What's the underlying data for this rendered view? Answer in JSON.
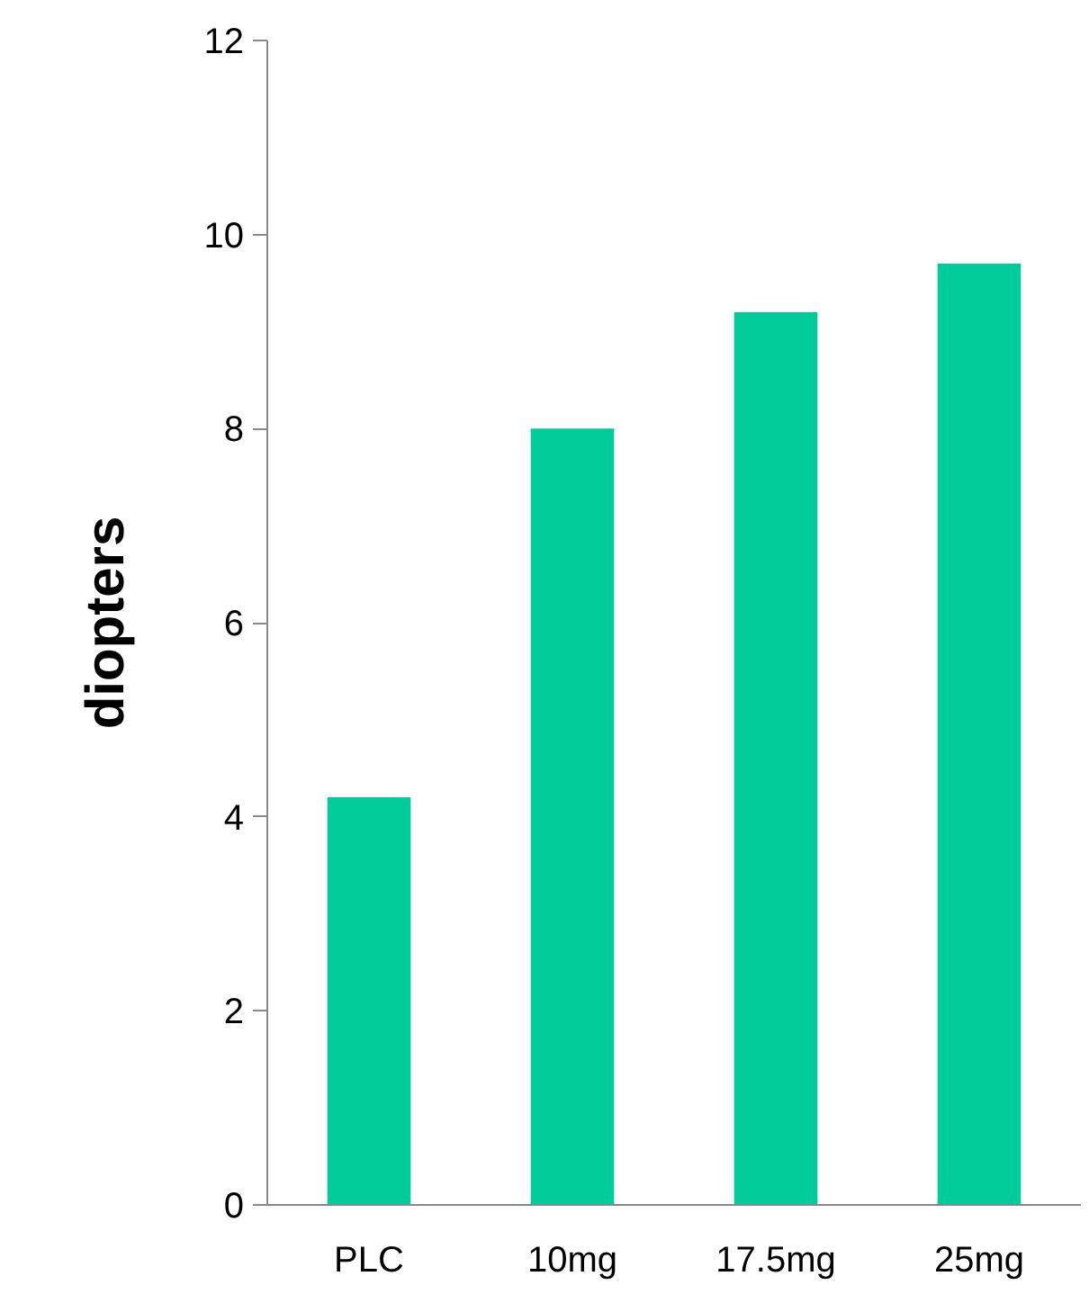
{
  "chart_data": {
    "type": "bar",
    "ylabel": "diopters",
    "categories": [
      "PLC",
      "10mg",
      "17.5mg",
      "25mg"
    ],
    "values": [
      4.2,
      8.0,
      9.2,
      9.7
    ],
    "color": "#00cc99",
    "ylim": [
      0,
      12
    ],
    "yticks": [
      0,
      2,
      4,
      6,
      8,
      10,
      12
    ],
    "grid": false
  }
}
